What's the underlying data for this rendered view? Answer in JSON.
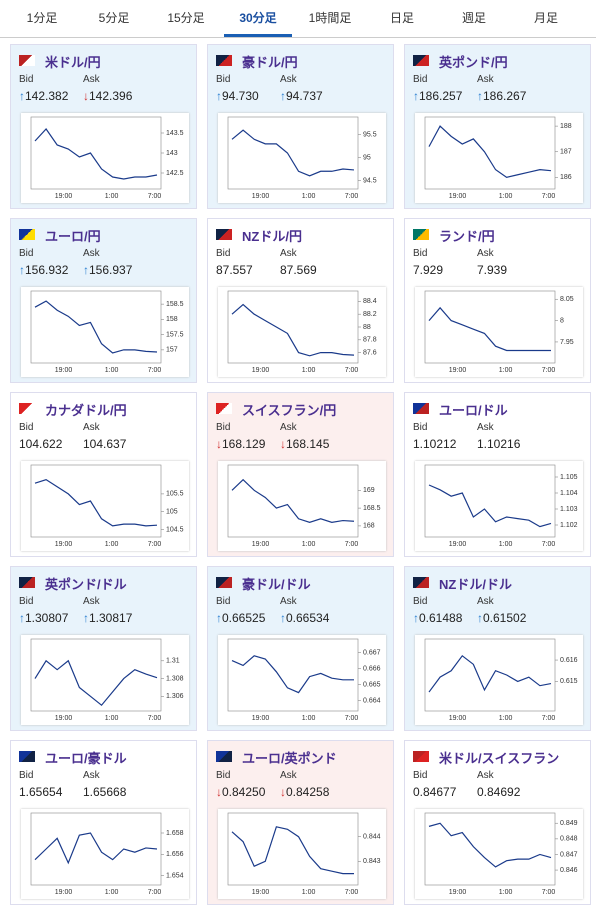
{
  "tabs": {
    "items": [
      "1分足",
      "5分足",
      "15分足",
      "30分足",
      "1時間足",
      "日足",
      "週足",
      "月足"
    ],
    "active": 3
  },
  "labels": {
    "bid": "Bid",
    "ask": "Ask"
  },
  "quotes": [
    {
      "name": "米ドル/円",
      "state": "up",
      "bid": "142.382",
      "bid_dir": "up",
      "ask": "142.396",
      "ask_dir": "down",
      "chart": {
        "type": "line",
        "color": "#1a3a8a",
        "ylim": [
          142.2,
          143.8
        ],
        "yticks": [
          142.5,
          143,
          143.5
        ],
        "xticks": [
          "19:00",
          "1:00",
          "7:00"
        ],
        "values": [
          143.3,
          143.6,
          143.2,
          143.1,
          142.9,
          143.0,
          142.6,
          142.4,
          142.35,
          142.4,
          142.4,
          142.45
        ]
      }
    },
    {
      "name": "豪ドル/円",
      "state": "up",
      "bid": "94.730",
      "bid_dir": "up",
      "ask": "94.737",
      "ask_dir": "up",
      "chart": {
        "type": "line",
        "color": "#1a3a8a",
        "ylim": [
          94.4,
          95.8
        ],
        "yticks": [
          94.5,
          95,
          95.5
        ],
        "xticks": [
          "19:00",
          "1:00",
          "7:00"
        ],
        "values": [
          95.4,
          95.6,
          95.4,
          95.3,
          95.3,
          95.1,
          94.7,
          94.6,
          94.7,
          94.7,
          94.75,
          94.73
        ]
      }
    },
    {
      "name": "英ポンド/円",
      "state": "up",
      "bid": "186.257",
      "bid_dir": "up",
      "ask": "186.267",
      "ask_dir": "up",
      "chart": {
        "type": "line",
        "color": "#1a3a8a",
        "ylim": [
          185.7,
          188.2
        ],
        "yticks": [
          186,
          187,
          188
        ],
        "xticks": [
          "19:00",
          "1:00",
          "7:00"
        ],
        "values": [
          187.2,
          188.0,
          187.6,
          187.3,
          187.5,
          187.0,
          186.3,
          186.0,
          186.1,
          186.2,
          186.3,
          186.26
        ]
      }
    },
    {
      "name": "ユーロ/円",
      "state": "up",
      "bid": "156.932",
      "bid_dir": "up",
      "ask": "156.937",
      "ask_dir": "up",
      "chart": {
        "type": "line",
        "color": "#1a3a8a",
        "ylim": [
          156.7,
          158.8
        ],
        "yticks": [
          157,
          157.5,
          158,
          158.5
        ],
        "xticks": [
          "19:00",
          "1:00",
          "7:00"
        ],
        "values": [
          158.4,
          158.6,
          158.3,
          158.1,
          157.8,
          157.9,
          157.2,
          156.9,
          157.0,
          157.0,
          156.95,
          156.93
        ]
      }
    },
    {
      "name": "NZドル/円",
      "state": "none",
      "bid": "87.557",
      "bid_dir": "none",
      "ask": "87.569",
      "ask_dir": "none",
      "chart": {
        "type": "line",
        "color": "#1a3a8a",
        "ylim": [
          87.5,
          88.5
        ],
        "yticks": [
          87.6,
          87.8,
          88,
          88.2,
          88.4
        ],
        "xticks": [
          "19:00",
          "1:00",
          "7:00"
        ],
        "values": [
          88.2,
          88.35,
          88.2,
          88.1,
          88.0,
          87.9,
          87.6,
          87.55,
          87.6,
          87.6,
          87.57,
          87.56
        ]
      }
    },
    {
      "name": "ランド/円",
      "state": "none",
      "bid": "7.929",
      "bid_dir": "none",
      "ask": "7.939",
      "ask_dir": "none",
      "chart": {
        "type": "line",
        "color": "#1a3a8a",
        "ylim": [
          7.91,
          8.06
        ],
        "yticks": [
          7.95,
          8,
          8.05
        ],
        "xticks": [
          "19:00",
          "1:00",
          "7:00"
        ],
        "values": [
          8.0,
          8.03,
          8.0,
          7.99,
          7.98,
          7.97,
          7.94,
          7.93,
          7.93,
          7.93,
          7.93,
          7.93
        ]
      }
    },
    {
      "name": "カナダドル/円",
      "state": "none",
      "bid": "104.622",
      "bid_dir": "none",
      "ask": "104.637",
      "ask_dir": "none",
      "chart": {
        "type": "line",
        "color": "#1a3a8a",
        "ylim": [
          104.4,
          106.2
        ],
        "yticks": [
          104.5,
          105,
          105.5
        ],
        "xticks": [
          "19:00",
          "1:00",
          "7:00"
        ],
        "values": [
          105.8,
          105.9,
          105.7,
          105.5,
          105.2,
          105.3,
          104.8,
          104.6,
          104.65,
          104.65,
          104.6,
          104.62
        ]
      }
    },
    {
      "name": "スイスフラン/円",
      "state": "down",
      "bid": "168.129",
      "bid_dir": "down",
      "ask": "168.145",
      "ask_dir": "down",
      "chart": {
        "type": "line",
        "color": "#1a3a8a",
        "ylim": [
          167.8,
          169.6
        ],
        "yticks": [
          168,
          168.5,
          169
        ],
        "xticks": [
          "19:00",
          "1:00",
          "7:00"
        ],
        "values": [
          169.0,
          169.3,
          169.0,
          168.8,
          168.5,
          168.6,
          168.2,
          168.1,
          168.2,
          168.1,
          168.15,
          168.13
        ]
      }
    },
    {
      "name": "ユーロ/ドル",
      "state": "none",
      "bid": "1.10212",
      "bid_dir": "none",
      "ask": "1.10216",
      "ask_dir": "none",
      "chart": {
        "type": "line",
        "color": "#1a3a8a",
        "ylim": [
          1.1015,
          1.1055
        ],
        "yticks": [
          1.102,
          1.103,
          1.104,
          1.105
        ],
        "xticks": [
          "19:00",
          "1:00",
          "7:00"
        ],
        "values": [
          1.1045,
          1.1042,
          1.1038,
          1.104,
          1.1025,
          1.103,
          1.1022,
          1.1025,
          1.1024,
          1.1023,
          1.1019,
          1.1021
        ]
      }
    },
    {
      "name": "英ポンド/ドル",
      "state": "up",
      "bid": "1.30807",
      "bid_dir": "up",
      "ask": "1.30817",
      "ask_dir": "up",
      "chart": {
        "type": "line",
        "color": "#1a3a8a",
        "ylim": [
          1.3048,
          1.312
        ],
        "yticks": [
          1.306,
          1.308,
          1.31
        ],
        "xticks": [
          "19:00",
          "1:00",
          "7:00"
        ],
        "values": [
          1.308,
          1.31,
          1.309,
          1.31,
          1.307,
          1.306,
          1.305,
          1.3065,
          1.308,
          1.309,
          1.3085,
          1.3081
        ]
      }
    },
    {
      "name": "豪ドル/ドル",
      "state": "up",
      "bid": "0.66525",
      "bid_dir": "up",
      "ask": "0.66534",
      "ask_dir": "up",
      "chart": {
        "type": "line",
        "color": "#1a3a8a",
        "ylim": [
          0.6636,
          0.6676
        ],
        "yticks": [
          0.664,
          0.665,
          0.666,
          0.667
        ],
        "xticks": [
          "19:00",
          "1:00",
          "7:00"
        ],
        "values": [
          0.6665,
          0.6662,
          0.6668,
          0.6666,
          0.6658,
          0.6648,
          0.6645,
          0.6655,
          0.6657,
          0.6654,
          0.6653,
          0.6653
        ]
      }
    },
    {
      "name": "NZドル/ドル",
      "state": "up",
      "bid": "0.61488",
      "bid_dir": "up",
      "ask": "0.61502",
      "ask_dir": "up",
      "chart": {
        "type": "line",
        "color": "#1a3a8a",
        "ylim": [
          0.6138,
          0.6168
        ],
        "yticks": [
          0.615,
          0.616
        ],
        "xticks": [
          "19:00",
          "1:00",
          "7:00"
        ],
        "values": [
          0.6145,
          0.6152,
          0.6155,
          0.6162,
          0.6158,
          0.6146,
          0.6155,
          0.6153,
          0.615,
          0.6152,
          0.6148,
          0.6149
        ]
      }
    },
    {
      "name": "ユーロ/豪ドル",
      "state": "none",
      "bid": "1.65654",
      "bid_dir": "none",
      "ask": "1.65668",
      "ask_dir": "none",
      "chart": {
        "type": "line",
        "color": "#1a3a8a",
        "ylim": [
          1.6535,
          1.6595
        ],
        "yticks": [
          1.654,
          1.656,
          1.658
        ],
        "xticks": [
          "19:00",
          "1:00",
          "7:00"
        ],
        "values": [
          1.6555,
          1.6565,
          1.6575,
          1.6552,
          1.6578,
          1.658,
          1.6562,
          1.6555,
          1.6565,
          1.6562,
          1.6566,
          1.6565
        ]
      }
    },
    {
      "name": "ユーロ/英ポンド",
      "state": "down",
      "bid": "0.84250",
      "bid_dir": "down",
      "ask": "0.84258",
      "ask_dir": "down",
      "chart": {
        "type": "line",
        "color": "#1a3a8a",
        "ylim": [
          0.8422,
          0.8448
        ],
        "yticks": [
          0.843,
          0.844
        ],
        "xticks": [
          "19:00",
          "1:00",
          "7:00"
        ],
        "values": [
          0.8442,
          0.8438,
          0.8428,
          0.843,
          0.8444,
          0.8443,
          0.844,
          0.8432,
          0.8427,
          0.8426,
          0.8425,
          0.8425
        ]
      }
    },
    {
      "name": "米ドル/スイスフラン",
      "state": "none",
      "bid": "0.84677",
      "bid_dir": "none",
      "ask": "0.84692",
      "ask_dir": "none",
      "chart": {
        "type": "line",
        "color": "#1a3a8a",
        "ylim": [
          0.8453,
          0.8494
        ],
        "yticks": [
          0.846,
          0.847,
          0.848,
          0.849
        ],
        "xticks": [
          "19:00",
          "1:00",
          "7:00"
        ],
        "values": [
          0.8488,
          0.849,
          0.8482,
          0.8484,
          0.8475,
          0.8468,
          0.8462,
          0.8466,
          0.8467,
          0.8467,
          0.847,
          0.8468
        ]
      }
    }
  ]
}
